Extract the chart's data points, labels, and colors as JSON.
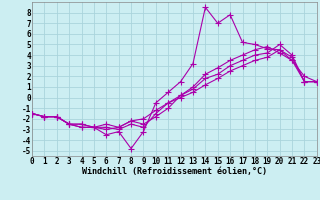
{
  "xlabel": "Windchill (Refroidissement éolien,°C)",
  "background_color": "#cceef2",
  "grid_color": "#aad4dc",
  "line_color": "#aa00aa",
  "x_values": [
    0,
    1,
    2,
    3,
    4,
    5,
    6,
    7,
    8,
    9,
    10,
    11,
    12,
    13,
    14,
    15,
    16,
    17,
    18,
    19,
    20,
    21,
    22,
    23
  ],
  "line1": [
    -1.5,
    -1.8,
    -1.8,
    -2.5,
    -2.8,
    -2.8,
    -3.5,
    -3.2,
    -4.8,
    -3.2,
    -0.5,
    0.5,
    1.5,
    3.2,
    8.5,
    7.0,
    7.8,
    5.2,
    5.0,
    4.6,
    4.5,
    3.8,
    1.5,
    1.5
  ],
  "line2": [
    -1.5,
    -1.8,
    -1.8,
    -2.5,
    -2.8,
    -2.8,
    -3.0,
    -2.8,
    -2.2,
    -2.5,
    -1.8,
    -1.0,
    0.2,
    1.0,
    2.2,
    2.8,
    3.5,
    4.0,
    4.5,
    4.8,
    4.2,
    3.5,
    1.5,
    1.5
  ],
  "line3": [
    -1.5,
    -1.8,
    -1.8,
    -2.5,
    -2.5,
    -2.8,
    -2.8,
    -3.0,
    -2.5,
    -2.8,
    -1.5,
    -0.5,
    0.2,
    0.8,
    1.8,
    2.2,
    3.0,
    3.5,
    4.0,
    4.2,
    5.0,
    4.0,
    1.5,
    1.5
  ],
  "line4": [
    -1.5,
    -1.8,
    -1.8,
    -2.5,
    -2.5,
    -2.8,
    -2.5,
    -2.8,
    -2.2,
    -2.0,
    -1.2,
    -0.5,
    0.0,
    0.5,
    1.2,
    1.8,
    2.5,
    3.0,
    3.5,
    3.8,
    4.5,
    3.5,
    2.0,
    1.5
  ],
  "ylim": [
    -5.5,
    9.0
  ],
  "xlim": [
    0,
    23
  ],
  "yticks": [
    -5,
    -4,
    -3,
    -2,
    -1,
    0,
    1,
    2,
    3,
    4,
    5,
    6,
    7,
    8
  ],
  "xticks": [
    0,
    1,
    2,
    3,
    4,
    5,
    6,
    7,
    8,
    9,
    10,
    11,
    12,
    13,
    14,
    15,
    16,
    17,
    18,
    19,
    20,
    21,
    22,
    23
  ],
  "tick_fontsize": 5.5,
  "xlabel_fontsize": 6.0,
  "marker_size": 2.0,
  "line_width": 0.8
}
